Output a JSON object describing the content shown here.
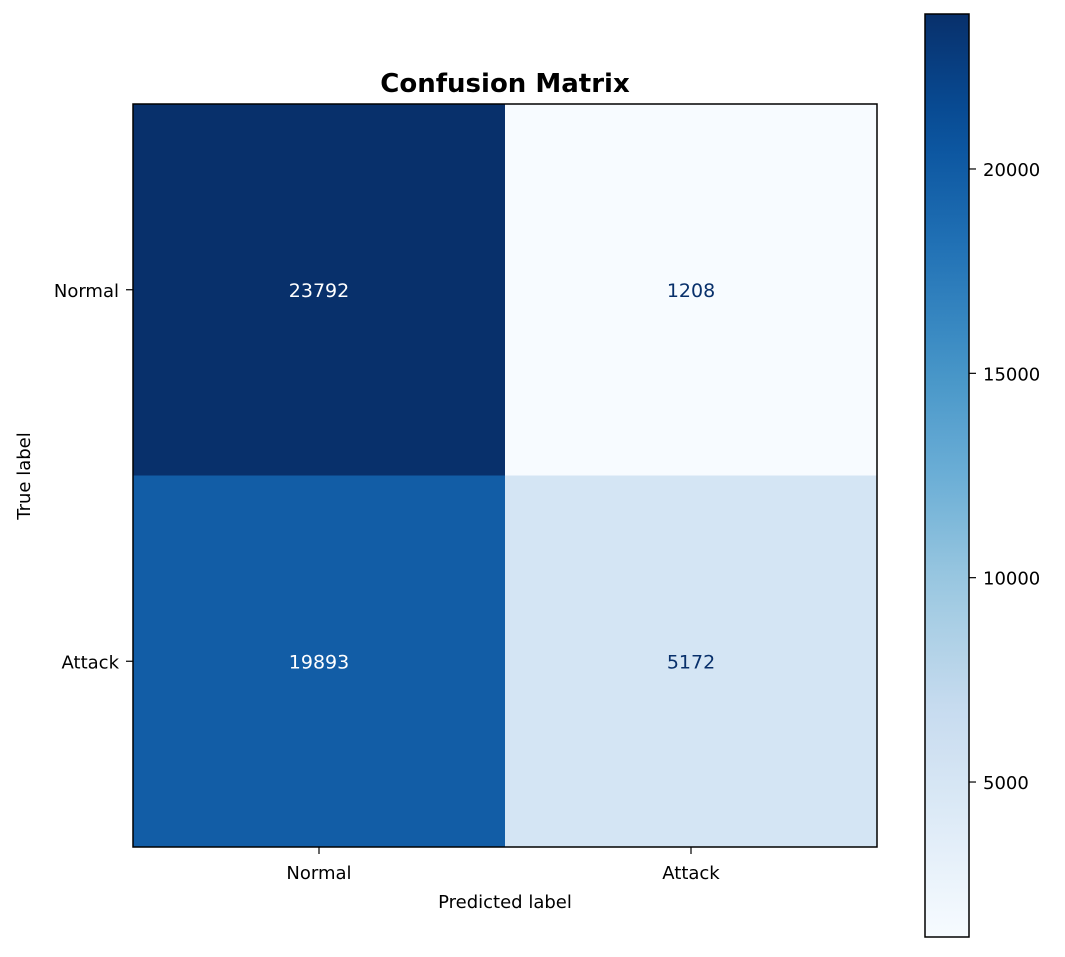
{
  "chart_data": {
    "type": "heatmap",
    "title": "Confusion Matrix",
    "xlabel": "Predicted label",
    "ylabel": "True label",
    "x_categories": [
      "Normal",
      "Attack"
    ],
    "y_categories": [
      "Normal",
      "Attack"
    ],
    "values": [
      [
        23792,
        1208
      ],
      [
        19893,
        5172
      ]
    ],
    "colormap": "Blues",
    "vmin": 1208,
    "vmax": 23792,
    "colorbar_ticks": [
      5000,
      10000,
      15000,
      20000
    ],
    "text_color_dark_cell": "#ffffff",
    "text_color_light_cell": "#08306b",
    "grid": false
  }
}
